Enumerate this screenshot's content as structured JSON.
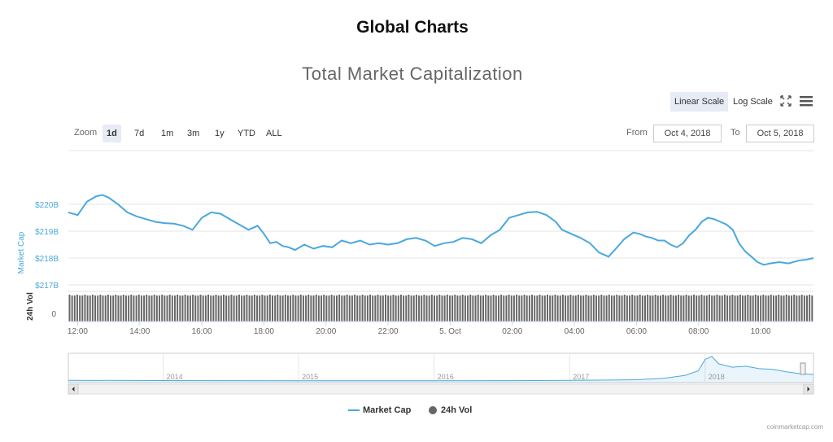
{
  "page_title": "Global Charts",
  "toolbar": {
    "linear_scale": "Linear Scale",
    "log_scale": "Log Scale",
    "fullscreen_icon": "fullscreen-icon",
    "menu_icon": "hamburger-menu-icon"
  },
  "range_selector": {
    "zoom_label": "Zoom",
    "buttons": [
      "1d",
      "7d",
      "1m",
      "3m",
      "1y",
      "YTD",
      "ALL"
    ],
    "active": "1d",
    "from_label": "From",
    "from_value": "Oct 4, 2018",
    "to_label": "To",
    "to_value": "Oct 5, 2018"
  },
  "legend": {
    "market_cap": "Market Cap",
    "volume": "24h Vol"
  },
  "credits": "coinmarketcap.com",
  "colors": {
    "market_cap": "#4aa8dd",
    "volume": "#666666",
    "active_button": "#e6ebf5"
  },
  "chart_data": {
    "type": "line",
    "title": "Total Market Capitalization",
    "ylabel": "Market Cap",
    "y_unit": "B USD",
    "ylim": [
      217,
      222
    ],
    "y_ticks": [
      "$217B",
      "$218B",
      "$219B",
      "$220B"
    ],
    "x_ticks": [
      "12:00",
      "14:00",
      "16:00",
      "18:00",
      "20:00",
      "22:00",
      "5. Oct",
      "02:00",
      "04:00",
      "06:00",
      "08:00",
      "10:00"
    ],
    "x_range_hours": [
      11.7,
      35.7
    ],
    "series": [
      {
        "name": "Market Cap",
        "x": [
          11.7,
          12.0,
          12.3,
          12.6,
          12.8,
          13.0,
          13.3,
          13.6,
          13.9,
          14.2,
          14.5,
          14.8,
          15.1,
          15.4,
          15.7,
          16.0,
          16.3,
          16.6,
          16.9,
          17.2,
          17.5,
          17.8,
          18.0,
          18.2,
          18.4,
          18.6,
          18.8,
          19.0,
          19.3,
          19.6,
          19.9,
          20.2,
          20.5,
          20.8,
          21.1,
          21.4,
          21.7,
          22.0,
          22.3,
          22.6,
          22.9,
          23.2,
          23.5,
          23.8,
          24.1,
          24.4,
          24.7,
          25.0,
          25.3,
          25.6,
          25.9,
          26.2,
          26.5,
          26.8,
          27.1,
          27.4,
          27.6,
          27.9,
          28.2,
          28.5,
          28.8,
          29.1,
          29.3,
          29.6,
          29.9,
          30.1,
          30.3,
          30.5,
          30.7,
          30.9,
          31.1,
          31.3,
          31.5,
          31.7,
          31.9,
          32.1,
          32.3,
          32.5,
          32.7,
          32.9,
          33.1,
          33.3,
          33.5,
          33.7,
          33.9,
          34.1,
          34.3,
          34.6,
          34.9,
          35.2,
          35.5,
          35.7
        ],
        "values": [
          219.7,
          219.6,
          220.1,
          220.3,
          220.35,
          220.25,
          220.0,
          219.7,
          219.55,
          219.45,
          219.35,
          219.3,
          219.28,
          219.2,
          219.05,
          219.5,
          219.7,
          219.65,
          219.45,
          219.25,
          219.05,
          219.2,
          218.9,
          218.55,
          218.6,
          218.45,
          218.4,
          218.3,
          218.5,
          218.35,
          218.45,
          218.4,
          218.65,
          218.55,
          218.65,
          218.5,
          218.55,
          218.5,
          218.55,
          218.7,
          218.75,
          218.65,
          218.45,
          218.55,
          218.6,
          218.75,
          218.7,
          218.55,
          218.85,
          219.05,
          219.5,
          219.6,
          219.7,
          219.72,
          219.6,
          219.35,
          219.05,
          218.9,
          218.75,
          218.55,
          218.2,
          218.05,
          218.3,
          218.7,
          218.95,
          218.9,
          218.8,
          218.75,
          218.65,
          218.65,
          218.5,
          218.4,
          218.55,
          218.85,
          219.05,
          219.35,
          219.5,
          219.45,
          219.35,
          219.25,
          219.05,
          218.55,
          218.25,
          218.05,
          217.85,
          217.75,
          217.8,
          217.85,
          217.8,
          217.9,
          217.95,
          218.0
        ]
      },
      {
        "name": "24h Vol",
        "type": "column"
      }
    ],
    "volume_axis_label": "24h Vol",
    "volume_tick": "0",
    "navigator": {
      "years": [
        "2014",
        "2015",
        "2016",
        "2017",
        "2018"
      ],
      "x_years": [
        2013.3,
        2018.8
      ],
      "points_year": [
        2013.3,
        2014.0,
        2015.0,
        2016.0,
        2016.6,
        2017.0,
        2017.3,
        2017.5,
        2017.7,
        2017.85,
        2017.95,
        2018.0,
        2018.05,
        2018.1,
        2018.2,
        2018.3,
        2018.4,
        2018.5,
        2018.6,
        2018.7,
        2018.8
      ],
      "points_value": [
        20,
        12,
        7,
        7,
        10,
        18,
        30,
        40,
        90,
        180,
        330,
        700,
        800,
        560,
        450,
        480,
        400,
        380,
        300,
        240,
        210
      ]
    }
  }
}
